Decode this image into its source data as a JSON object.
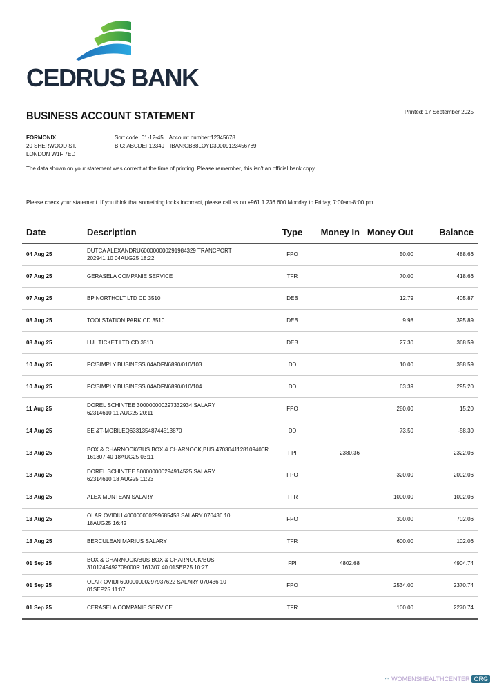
{
  "brand": {
    "name": "CEDRUS BANK",
    "colors": {
      "navy": "#1d2a3c",
      "green": "#3aa54a",
      "blue": "#1a7fc4"
    }
  },
  "header": {
    "title": "BUSINESS ACCOUNT STATEMENT",
    "printed": "Printed: 17 September 2025"
  },
  "customer": {
    "name": "FORMONIX",
    "address_line1": "20 SHERWOOD ST.",
    "address_line2": "LONDON W1F 7ED"
  },
  "account": {
    "sort_code": "Sort code: 01-12-45",
    "account_number": "Account number:12345678",
    "bic": "BIC: ABCDEF12349",
    "iban": "IBAN:GB88LOYD30009123456789"
  },
  "notes": {
    "accuracy": "The data shown on your statement was correct at the time of printing. Please remember, this isn't an official bank copy.",
    "contact": "Please check your statement. If you think that something looks incorrect, please call as on +961 1 236 600 Monday to Friday, 7:00am-8:00 pm"
  },
  "table": {
    "columns": [
      "Date",
      "Description",
      "Type",
      "Money In",
      "Money Out",
      "Balance"
    ],
    "rows": [
      {
        "date": "04 Aug 25",
        "desc": [
          "DUTCA ALEXANDRU600000000291984329 TRANCPORT",
          "202941 10 04AUG25 18:22"
        ],
        "type": "FPO",
        "in": "",
        "out": "50.00",
        "bal": "488.66"
      },
      {
        "date": "07 Aug 25",
        "desc": [
          "GERASELA COMPANIE SERVICE"
        ],
        "type": "TFR",
        "in": "",
        "out": "70.00",
        "bal": "418.66"
      },
      {
        "date": "07 Aug 25",
        "desc": [
          "BP NORTHOLT LTD CD 3510"
        ],
        "type": "DEB",
        "in": "",
        "out": "12.79",
        "bal": "405.87"
      },
      {
        "date": "08 Aug 25",
        "desc": [
          "TOOLSTATION PARK CD 3510"
        ],
        "type": "DEB",
        "in": "",
        "out": "9.98",
        "bal": "395.89"
      },
      {
        "date": "08 Aug 25",
        "desc": [
          "LUL TICKET LTD CD 3510"
        ],
        "type": "DEB",
        "in": "",
        "out": "27.30",
        "bal": "368.59"
      },
      {
        "date": "10 Aug 25",
        "desc": [
          "PC/SIMPLY BUSINESS 04ADFN6890/010/103"
        ],
        "type": "DD",
        "in": "",
        "out": "10.00",
        "bal": "358.59"
      },
      {
        "date": "10 Aug 25",
        "desc": [
          "PC/SIMPLY BUSINESS 04ADFN6890/010/104"
        ],
        "type": "DD",
        "in": "",
        "out": "63.39",
        "bal": "295.20"
      },
      {
        "date": "11 Aug 25",
        "desc": [
          "DOREL SCHINTEE 300000000297332934 SALARY",
          "62314610 11 AUG25 20:11"
        ],
        "type": "FPO",
        "in": "",
        "out": "280.00",
        "bal": "15.20"
      },
      {
        "date": "14 Aug 25",
        "desc": [
          "EE &T-MOBILEQ63313548744513870"
        ],
        "type": "DD",
        "in": "",
        "out": "73.50",
        "bal": "-58.30"
      },
      {
        "date": "18 Aug 25",
        "desc": [
          "BOX & CHARNOCK/BUS BOX & CHARNOCK,BUS 4703041128109400R",
          "161307 40 18AUG25 03:11"
        ],
        "type": "FPI",
        "in": "2380.36",
        "out": "",
        "bal": "2322.06"
      },
      {
        "date": "18 Aug 25",
        "desc": [
          "DOREL SCHINTEE 500000000294914525 SALARY",
          "62314610 18 AUG25 11:23"
        ],
        "type": "FPO",
        "in": "",
        "out": "320.00",
        "bal": "2002.06"
      },
      {
        "date": "18 Aug 25",
        "desc": [
          "ALEX MUNTEAN SALARY"
        ],
        "type": "TFR",
        "in": "",
        "out": "1000.00",
        "bal": "1002.06"
      },
      {
        "date": "18 Aug 25",
        "desc": [
          "OLAR OVIDIU 400000000299685458 SALARY 070436 10",
          "18AUG25 16:42"
        ],
        "type": "FPO",
        "in": "",
        "out": "300.00",
        "bal": "702.06"
      },
      {
        "date": "18 Aug 25",
        "desc": [
          "BERCULEAN MARIUS SALARY"
        ],
        "type": "TFR",
        "in": "",
        "out": "600.00",
        "bal": "102.06"
      },
      {
        "date": "01 Sep 25",
        "desc": [
          "BOX & CHARNOCK/BUS BOX & CHARNOCK/BUS",
          "3101249492709000R 161307 40 01SEP25 10:27"
        ],
        "type": "FPI",
        "in": "4802.68",
        "out": "",
        "bal": "4904.74"
      },
      {
        "date": "01 Sep 25",
        "desc": [
          "OLAR OVIDI 600000000297937622 SALARY 070436 10",
          "01SEP25 11:07"
        ],
        "type": "FPO",
        "in": "",
        "out": "2534.00",
        "bal": "2370.74"
      },
      {
        "date": "01 Sep 25",
        "desc": [
          "CERASELA COMPANIE SERVICE"
        ],
        "type": "TFR",
        "in": "",
        "out": "100.00",
        "bal": "2270.74"
      }
    ]
  },
  "watermark": {
    "text": "WOMENSHEALTHCENTER",
    "suffix": "ORG"
  }
}
